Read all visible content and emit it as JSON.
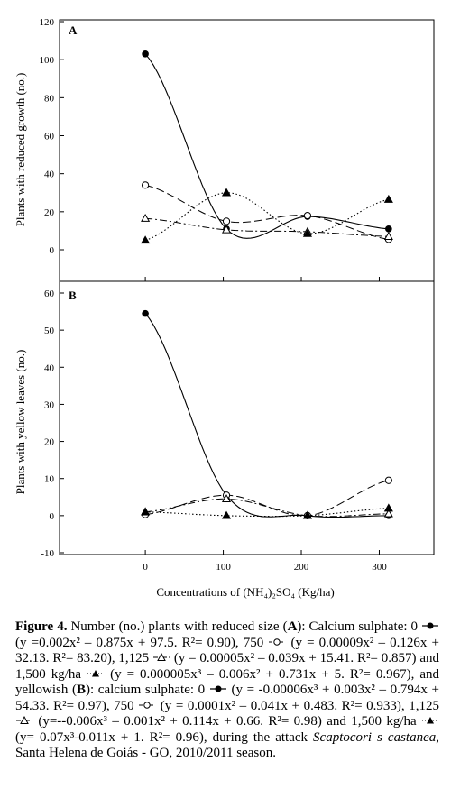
{
  "chart_data": [
    {
      "type": "scatter",
      "panel": "A",
      "ylabel": "Plants with reduced growth (no.)",
      "xlim": [
        -110,
        370
      ],
      "ylim": [
        0,
        120
      ],
      "yticks": [
        0,
        20,
        40,
        60,
        80,
        100,
        120
      ],
      "xticks": [
        0,
        100,
        200,
        300
      ],
      "series": [
        {
          "marker": "filled-circle",
          "line": "solid",
          "x": [
            0,
            104,
            208,
            312
          ],
          "y": [
            103,
            11,
            17.5,
            11
          ],
          "fit": [
            0.002,
            -0.875,
            97.5
          ]
        },
        {
          "marker": "open-circle",
          "line": "dashed",
          "x": [
            0,
            104,
            208,
            312
          ],
          "y": [
            34,
            15,
            18,
            5.5
          ],
          "fit": [
            9e-05,
            -0.126,
            32.13
          ]
        },
        {
          "marker": "open-triangle",
          "line": "dash-dot",
          "x": [
            0,
            104,
            208,
            312
          ],
          "y": [
            16.5,
            10.5,
            9.5,
            7
          ],
          "fit": [
            5e-05,
            -0.039,
            15.41
          ]
        },
        {
          "marker": "filled-triangle",
          "line": "dotted",
          "x": [
            0,
            104,
            208,
            312
          ],
          "y": [
            5,
            30,
            8.5,
            26.5
          ],
          "fit": [
            5e-06,
            -0.006,
            0.731,
            5
          ]
        }
      ]
    },
    {
      "type": "scatter",
      "panel": "B",
      "ylabel": "Plants with yellow leaves (no.)",
      "xlabel": "Concentrations of (NH₄)₂SO₄ (Kg/ha)",
      "xlim": [
        -110,
        370
      ],
      "ylim": [
        -10,
        60
      ],
      "yticks": [
        -10,
        0,
        10,
        20,
        30,
        40,
        50,
        60
      ],
      "xticks": [
        0,
        100,
        200,
        300
      ],
      "series": [
        {
          "marker": "filled-circle",
          "line": "solid",
          "x": [
            0,
            104,
            208,
            312
          ],
          "y": [
            54.5,
            5.5,
            0,
            0
          ],
          "fit": [
            -6e-05,
            0.003,
            -0.794,
            54.33
          ]
        },
        {
          "marker": "open-circle",
          "line": "dashed",
          "x": [
            0,
            104,
            208,
            312
          ],
          "y": [
            0.3,
            5.5,
            0,
            9.5
          ],
          "fit": [
            0.0001,
            -0.041,
            0.483
          ]
        },
        {
          "marker": "open-triangle",
          "line": "dash-dot",
          "x": [
            0,
            104,
            208,
            312
          ],
          "y": [
            1,
            4.5,
            0,
            0.5
          ],
          "fit": [
            -0.006,
            -0.001,
            0.114,
            0.66
          ]
        },
        {
          "marker": "filled-triangle",
          "line": "dotted",
          "x": [
            0,
            104,
            208,
            312
          ],
          "y": [
            1,
            0,
            0,
            2
          ],
          "fit": [
            0.07,
            -0.011,
            1
          ]
        }
      ]
    }
  ],
  "caption": {
    "label": "Figure 4.",
    "text_1": " Number (no.) plants with reduced size (",
    "a_letter": "A",
    "text_2": "): Calcium sulphate: 0 ",
    "eq_a1": " (y =0.002x² – 0.875x + 97.5. R²= 0.90), 750 ",
    "eq_a2": " (y = 0.00009x² – 0.126x + 32.13. R²= 83.20), 1,125 ",
    "eq_a3": " (y = 0.00005x² – 0.039x + 15.41. R²= 0.857) and 1,500 kg/ha ",
    "eq_a4": " (y = 0.000005x³ – 0.006x² + 0.731x + 5. R²= 0.967), and yellowish (",
    "b_letter": "B",
    "text_3": "): calcium sulphate: 0 ",
    "eq_b1": " (y = -0.00006x³ + 0.003x² – 0.794x + 54.33. R²= 0.97), 750 ",
    "eq_b2": " (y = 0.0001x² – 0.041x + 0.483. R²= 0.933), 1,125 ",
    "eq_b3": " (y=--0.006x³ – 0.001x² + 0.114x + 0.66. R²= 0.98) and 1,500 kg/ha ",
    "eq_b4": " (y= 0.07x³-0.011x + 1. R²= 0.96), during the attack ",
    "species": "Scaptocori s castanea",
    "text_end": ", Santa Helena de Goiás - GO, 2010/2011 season."
  }
}
